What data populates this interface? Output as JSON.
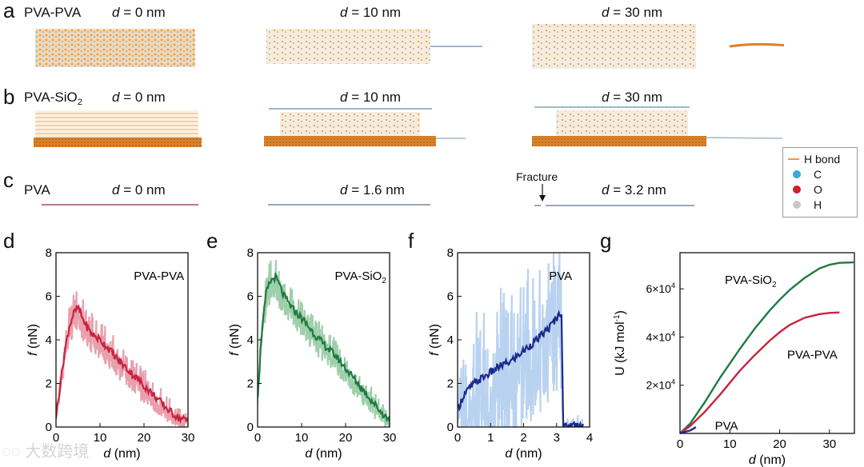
{
  "top": {
    "rows": [
      {
        "letter": "a",
        "title": "PVA-PVA",
        "d": [
          "0 nm",
          "10 nm",
          "30 nm"
        ]
      },
      {
        "letter": "b",
        "title_main": "PVA-SiO",
        "title_sub": "2",
        "d": [
          "0 nm",
          "10 nm",
          "30 nm"
        ]
      },
      {
        "letter": "c",
        "title": "PVA",
        "d": [
          "0 nm",
          "1.6 nm",
          "3.2 nm"
        ]
      }
    ],
    "d_symbol": "d",
    "eq": " = ",
    "fracture_label": "Fracture",
    "legend": [
      {
        "label": "H bond",
        "kind": "line",
        "color": "#f29a3a"
      },
      {
        "label": "C",
        "kind": "dot",
        "color": "#3aa8dd"
      },
      {
        "label": "O",
        "kind": "dot",
        "color": "#d0202a"
      },
      {
        "label": "H",
        "kind": "dot",
        "color": "#c8c8c8"
      }
    ],
    "colors": {
      "pva_chain": "#9fb9c8",
      "hbond": "#f29a3a",
      "silica": "#d9822b"
    }
  },
  "watermark": "大数跨境",
  "chart_data": [
    {
      "panel": "d",
      "type": "line",
      "title": "PVA-PVA",
      "xlabel_sym": "d",
      "xlabel_unit": " (nm)",
      "ylabel_sym": "f",
      "ylabel_unit": " (nN)",
      "xlim": [
        0,
        30
      ],
      "ylim": [
        0,
        8
      ],
      "xticks": [
        "0",
        "10",
        "20",
        "30"
      ],
      "yticks": [
        "0",
        "2",
        "4",
        "6",
        "8"
      ],
      "x": [
        0,
        1,
        2,
        3,
        4,
        5,
        6,
        7,
        8,
        10,
        12,
        14,
        16,
        18,
        20,
        22,
        24,
        26,
        28,
        30
      ],
      "mean": [
        0.5,
        2.0,
        3.5,
        4.6,
        5.2,
        5.5,
        5.0,
        4.6,
        4.3,
        4.0,
        3.6,
        3.1,
        2.7,
        2.3,
        1.9,
        1.5,
        1.1,
        0.7,
        0.4,
        0.3
      ],
      "band": [
        0.3,
        0.6,
        0.8,
        0.9,
        1.0,
        1.0,
        1.0,
        1.0,
        1.0,
        0.9,
        0.9,
        0.9,
        0.8,
        0.8,
        0.8,
        0.7,
        0.7,
        0.6,
        0.5,
        0.3
      ],
      "line_color": "#c8243f",
      "band_color": "#e8a0ae"
    },
    {
      "panel": "e",
      "type": "line",
      "title_main": "PVA-SiO",
      "title_sub": "2",
      "xlabel_sym": "d",
      "xlabel_unit": " (nm)",
      "ylabel_sym": "f",
      "ylabel_unit": " (nN)",
      "xlim": [
        0,
        30
      ],
      "ylim": [
        0,
        8
      ],
      "xticks": [
        "0",
        "10",
        "20",
        "30"
      ],
      "yticks": [
        "0",
        "2",
        "4",
        "6",
        "8"
      ],
      "x": [
        0,
        1,
        2,
        3,
        4,
        5,
        6,
        7,
        8,
        10,
        12,
        14,
        16,
        18,
        20,
        22,
        24,
        26,
        28,
        30
      ],
      "mean": [
        1.5,
        4.5,
        6.2,
        6.7,
        6.9,
        6.5,
        6.0,
        5.7,
        5.4,
        5.0,
        4.5,
        4.0,
        3.6,
        3.2,
        2.7,
        2.2,
        1.7,
        1.2,
        0.7,
        0.3
      ],
      "band": [
        0.5,
        0.8,
        1.0,
        1.1,
        1.1,
        1.1,
        1.0,
        1.0,
        0.9,
        0.9,
        0.9,
        0.9,
        0.8,
        0.8,
        0.8,
        0.8,
        0.7,
        0.7,
        0.6,
        0.4
      ],
      "line_color": "#1f7a43",
      "band_color": "#9fcfab"
    },
    {
      "panel": "f",
      "type": "line",
      "title": "PVA",
      "xlabel_sym": "d",
      "xlabel_unit": " (nm)",
      "ylabel_sym": "f",
      "ylabel_unit": " (nN)",
      "xlim": [
        0,
        4
      ],
      "ylim": [
        0,
        8
      ],
      "xticks": [
        "0",
        "1",
        "2",
        "3",
        "4"
      ],
      "yticks": [
        "0",
        "2",
        "4",
        "6",
        "8"
      ],
      "x": [
        0,
        0.2,
        0.5,
        0.8,
        1.0,
        1.3,
        1.6,
        2.0,
        2.4,
        2.8,
        3.0,
        3.15,
        3.2,
        3.25,
        3.5,
        3.8
      ],
      "mean": [
        0.8,
        1.5,
        2.0,
        2.3,
        2.5,
        2.8,
        3.0,
        3.5,
        4.0,
        4.6,
        5.0,
        5.3,
        0.0,
        0.0,
        0.1,
        0.1
      ],
      "band": [
        1.0,
        2.6,
        3.2,
        3.4,
        3.6,
        3.6,
        3.6,
        3.6,
        3.6,
        3.6,
        3.6,
        3.6,
        0.2,
        0.3,
        0.5,
        0.4
      ],
      "line_color": "#1c2a8c",
      "band_color": "#b9d2f0"
    },
    {
      "panel": "g",
      "type": "line",
      "xlabel_sym": "d",
      "xlabel_unit": " (nm)",
      "ylabel": "U (kJ mol",
      "ylabel_sup": "-1",
      "ylabel_end": ")",
      "xlim": [
        0,
        35
      ],
      "ylim": [
        0,
        75000
      ],
      "xticks": [
        "0",
        "10",
        "20",
        "30"
      ],
      "yticks": [
        {
          "value": 20000,
          "label": "2×10",
          "sup": "4"
        },
        {
          "value": 40000,
          "label": "4×10",
          "sup": "4"
        },
        {
          "value": 60000,
          "label": "6×10",
          "sup": "4"
        }
      ],
      "series": [
        {
          "name_main": "PVA-SiO",
          "name_sub": "2",
          "color": "#1f7a43",
          "x": [
            0,
            2,
            5,
            8,
            10,
            12,
            15,
            18,
            20,
            22,
            25,
            28,
            30,
            32,
            35
          ],
          "y": [
            0,
            4000,
            13000,
            23000,
            29000,
            35000,
            43500,
            51000,
            55500,
            59500,
            64500,
            68500,
            70000,
            70800,
            71000
          ]
        },
        {
          "name": "PVA-PVA",
          "color": "#c8243f",
          "x": [
            0,
            2,
            5,
            8,
            10,
            12,
            15,
            18,
            20,
            22,
            25,
            28,
            30,
            32
          ],
          "y": [
            0,
            3000,
            9000,
            16000,
            21000,
            26000,
            32500,
            38500,
            42000,
            45000,
            48000,
            49500,
            50000,
            50200
          ]
        },
        {
          "name": "PVA",
          "color": "#1c2a8c",
          "x": [
            0,
            2,
            3.2
          ],
          "y": [
            0,
            1200,
            2600
          ]
        }
      ]
    }
  ]
}
